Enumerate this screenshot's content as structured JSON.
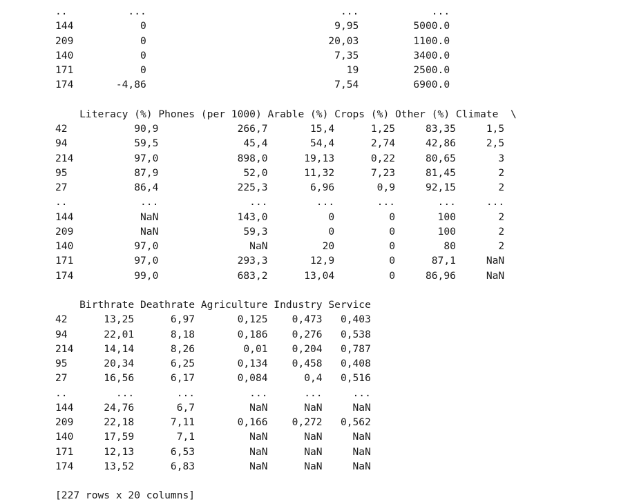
{
  "console": {
    "lines": [
      "..          ...                                ...            ...",
      "144           0                               9,95         5000.0",
      "209           0                              20,03         1100.0",
      "140           0                               7,35         3400.0",
      "171           0                                 19         2500.0",
      "174       -4,86                               7,54         6900.0",
      "",
      "    Literacy (%) Phones (per 1000) Arable (%) Crops (%) Other (%) Climate  \\",
      "42           90,9             266,7       15,4      1,25     83,35     1,5",
      "94           59,5              45,4       54,4      2,74     42,86     2,5",
      "214          97,0             898,0      19,13      0,22     80,65       3",
      "95           87,9              52,0      11,32      7,23     81,45       2",
      "27           86,4             225,3       6,96       0,9     92,15       2",
      "..            ...               ...        ...       ...       ...     ...",
      "144           NaN             143,0          0         0       100       2",
      "209           NaN              59,3          0         0       100       2",
      "140          97,0               NaN         20         0        80       2",
      "171          97,0             293,3       12,9         0      87,1     NaN",
      "174          99,0             683,2      13,04         0     86,96     NaN",
      "",
      "    Birthrate Deathrate Agriculture Industry Service",
      "42      13,25      6,97       0,125    0,473   0,403",
      "94      22,01      8,18       0,186    0,276   0,538",
      "214     14,14      8,26        0,01    0,204   0,787",
      "95      20,34      6,25       0,134    0,458   0,408",
      "27      16,56      6,17       0,084      0,4   0,516",
      "..        ...       ...         ...      ...     ...",
      "144     24,76       6,7         NaN      NaN     NaN",
      "209     22,18      7,11       0,166    0,272   0,562",
      "140     17,59       7,1         NaN      NaN     NaN",
      "171     12,13      6,53         NaN      NaN     NaN",
      "174     13,52      6,83         NaN      NaN     NaN",
      "",
      "[227 rows x 20 columns]"
    ]
  }
}
